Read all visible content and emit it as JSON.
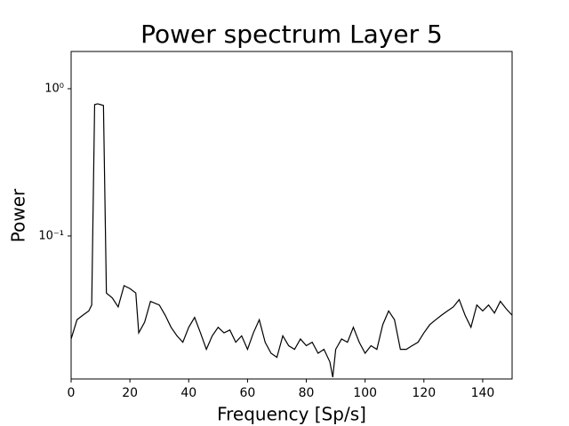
{
  "chart_data": {
    "type": "line",
    "title": "Power spectrum Layer 5",
    "x_label": "Frequency [Sp/s]",
    "y_label": "Power",
    "log_y": true,
    "color": "#000000",
    "x": [
      0,
      2,
      4,
      6,
      7,
      8,
      9,
      10,
      11,
      12,
      14,
      16,
      18,
      20,
      22,
      23,
      25,
      27,
      30,
      32,
      34,
      36,
      38,
      40,
      42,
      44,
      46,
      48,
      50,
      52,
      54,
      56,
      58,
      60,
      62,
      64,
      66,
      68,
      70,
      72,
      74,
      76,
      78,
      80,
      82,
      84,
      86,
      88,
      89,
      90,
      92,
      94,
      96,
      98,
      100,
      102,
      104,
      106,
      108,
      110,
      112,
      114,
      116,
      118,
      120,
      122,
      124,
      126,
      128,
      130,
      132,
      134,
      136,
      138,
      140,
      142,
      144,
      146,
      148,
      150
    ],
    "values": [
      0.02,
      0.027,
      0.029,
      0.031,
      0.034,
      0.78,
      0.79,
      0.78,
      0.77,
      0.041,
      0.038,
      0.033,
      0.046,
      0.044,
      0.041,
      0.022,
      0.026,
      0.036,
      0.034,
      0.029,
      0.024,
      0.021,
      0.019,
      0.024,
      0.028,
      0.022,
      0.017,
      0.021,
      0.024,
      0.022,
      0.023,
      0.019,
      0.021,
      0.017,
      0.022,
      0.027,
      0.019,
      0.016,
      0.015,
      0.021,
      0.018,
      0.017,
      0.02,
      0.018,
      0.019,
      0.016,
      0.017,
      0.014,
      0.011,
      0.017,
      0.02,
      0.019,
      0.024,
      0.019,
      0.016,
      0.018,
      0.017,
      0.025,
      0.031,
      0.027,
      0.017,
      0.017,
      0.018,
      0.019,
      0.022,
      0.025,
      0.027,
      0.029,
      0.031,
      0.033,
      0.037,
      0.029,
      0.024,
      0.034,
      0.031,
      0.034,
      0.03,
      0.036,
      0.032,
      0.029
    ],
    "xlim": [
      0,
      150
    ],
    "xticks": [
      0,
      20,
      40,
      60,
      80,
      100,
      120,
      140
    ],
    "ylim": [
      0.0107,
      1.79
    ],
    "yticks": [
      {
        "value": 1,
        "label": "10⁰"
      },
      {
        "value": 0.1,
        "label": "10⁻¹"
      }
    ],
    "grid": false
  }
}
